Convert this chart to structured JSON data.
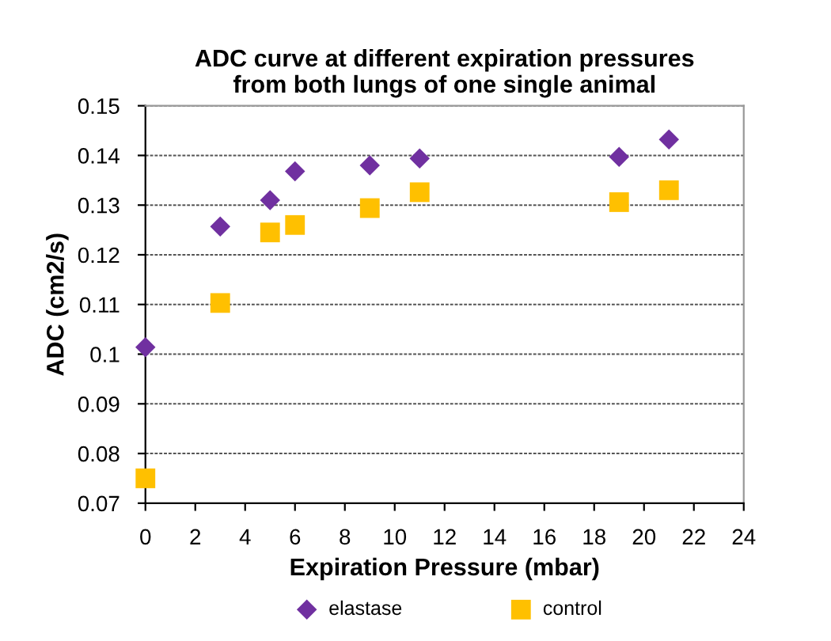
{
  "chart_data": {
    "type": "scatter",
    "title": "ADC curve at different expiration pressures\nfrom both lungs of one single animal",
    "xlabel": "Expiration Pressure (mbar)",
    "ylabel": "ADC (cm2/s)",
    "x": [
      0,
      3,
      5,
      6,
      9,
      11,
      19,
      21
    ],
    "series": [
      {
        "name": "elastase",
        "color": "#7030a0",
        "marker": "diamond",
        "values": [
          0.1014,
          0.1257,
          0.131,
          0.1368,
          0.138,
          0.1394,
          0.1397,
          0.1432
        ]
      },
      {
        "name": "control",
        "color": "#ffc000",
        "marker": "square",
        "values": [
          0.075,
          0.1103,
          0.1245,
          0.126,
          0.1294,
          0.1326,
          0.1306,
          0.133
        ]
      }
    ],
    "xlim": [
      0,
      24
    ],
    "xticks": [
      0,
      2,
      4,
      6,
      8,
      10,
      12,
      14,
      16,
      18,
      20,
      22,
      24
    ],
    "ylim": [
      0.07,
      0.15
    ],
    "yticks": [
      0.07,
      0.08,
      0.09,
      0.1,
      0.11,
      0.12,
      0.13,
      0.14,
      0.15
    ],
    "grid": "y",
    "legend": "bottom"
  }
}
